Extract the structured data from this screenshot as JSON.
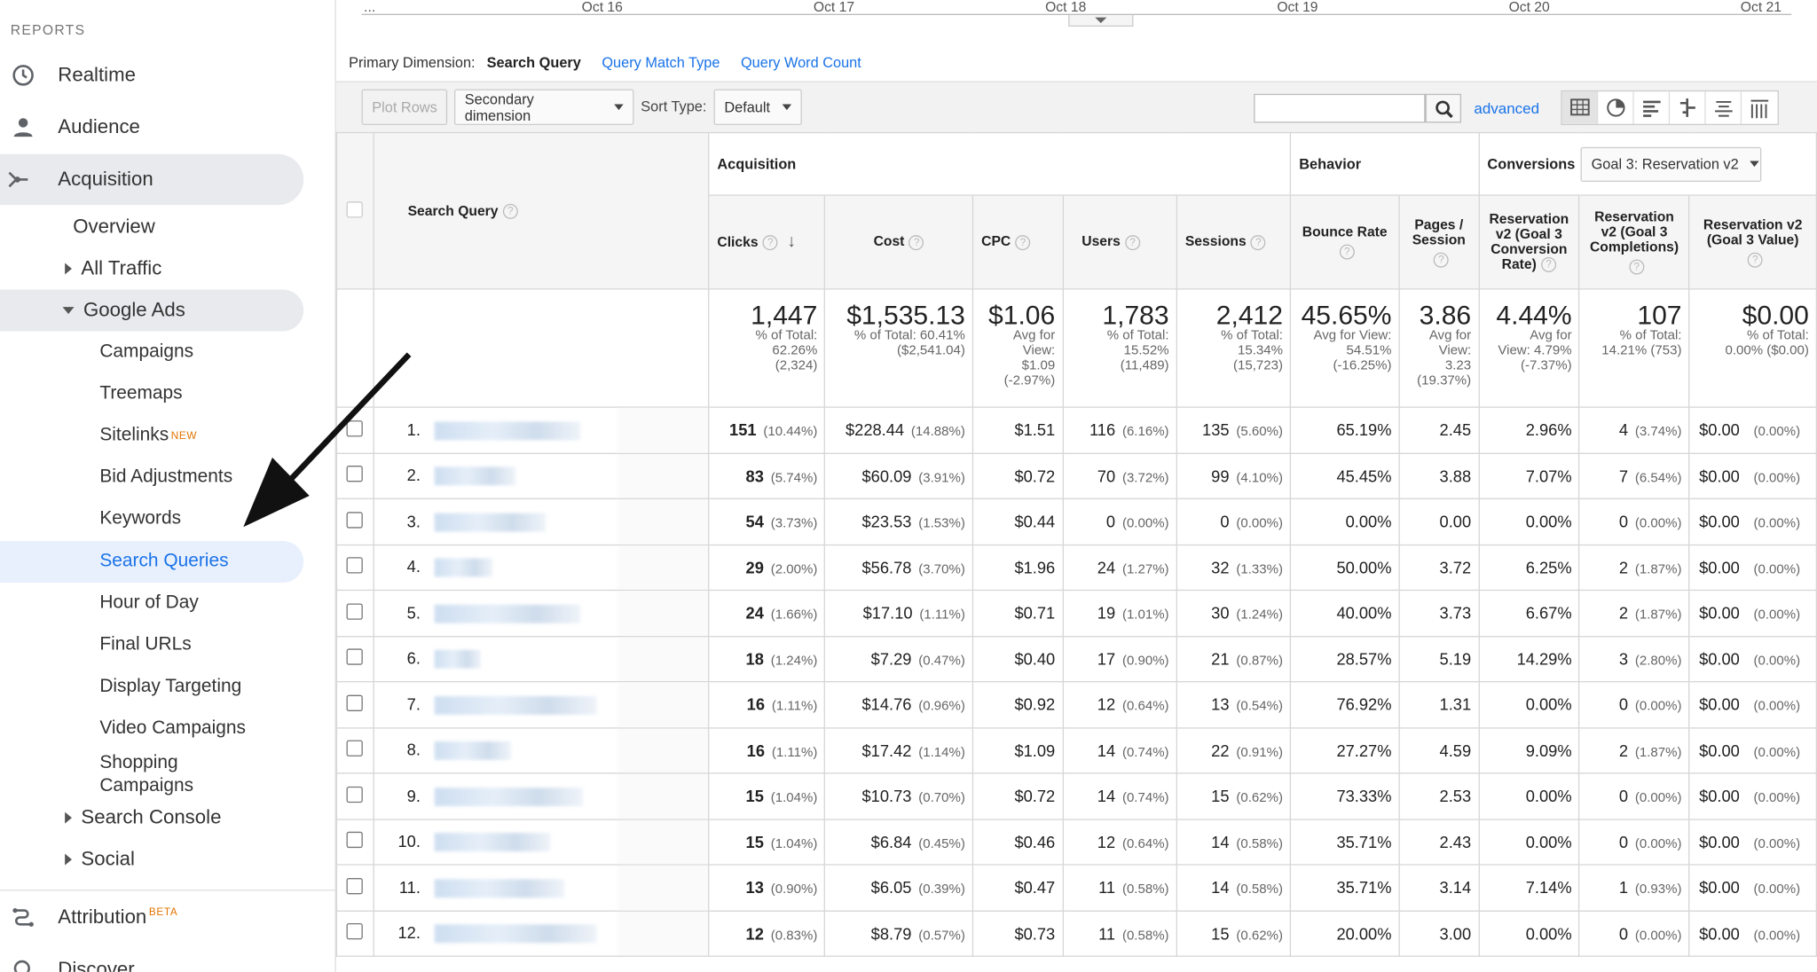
{
  "sidebar": {
    "heading": "REPORTS",
    "top_items": [
      {
        "label": "Realtime",
        "icon": "clock-icon"
      },
      {
        "label": "Audience",
        "icon": "person-icon"
      },
      {
        "label": "Acquisition",
        "icon": "acquisition-icon"
      }
    ],
    "acquisition_children": {
      "overview": "Overview",
      "all_traffic": "All Traffic",
      "google_ads": "Google Ads",
      "google_ads_items": [
        "Campaigns",
        "Treemaps",
        "Sitelinks",
        "Bid Adjustments",
        "Keywords",
        "Search Queries",
        "Hour of Day",
        "Final URLs",
        "Display Targeting",
        "Video Campaigns",
        "Shopping Campaigns"
      ],
      "new_badge": "NEW",
      "search_console": "Search Console",
      "social": "Social"
    },
    "attribution": "Attribution",
    "attribution_badge": "BETA",
    "discover": "Discover"
  },
  "timeline": {
    "labels": [
      "...",
      "Oct 16",
      "Oct 17",
      "Oct 18",
      "Oct 19",
      "Oct 20",
      "Oct 21"
    ]
  },
  "primary_dimension": {
    "label": "Primary Dimension:",
    "current": "Search Query",
    "options": [
      "Query Match Type",
      "Query Word Count"
    ]
  },
  "toolbar": {
    "plot_rows": "Plot Rows",
    "secondary_dimension": "Secondary dimension",
    "sort_type_label": "Sort Type:",
    "sort_type_value": "Default",
    "search_value": "",
    "advanced": "advanced"
  },
  "table": {
    "groups": {
      "acquisition": "Acquisition",
      "behavior": "Behavior",
      "conversions": "Conversions",
      "goal_select": "Goal 3: Reservation v2"
    },
    "columns": {
      "query": "Search Query",
      "clicks": "Clicks",
      "cost": "Cost",
      "cpc": "CPC",
      "users": "Users",
      "sessions": "Sessions",
      "bounce": "Bounce Rate",
      "pages": "Pages / Session",
      "conv_rate": "Reservation v2 (Goal 3 Conversion Rate)",
      "completions": "Reservation v2 (Goal 3 Completions)",
      "value": "Reservation v2 (Goal 3 Value)"
    },
    "totals": {
      "clicks": {
        "big": "1,447",
        "l1": "% of Total:",
        "l2": "62.26%",
        "l3": "(2,324)"
      },
      "cost": {
        "big": "$1,535.13",
        "l1": "% of Total: 60.41%",
        "l2": "($2,541.04)",
        "l3": ""
      },
      "cpc": {
        "big": "$1.06",
        "l1": "Avg for",
        "l2": "View:",
        "l3": "$1.09",
        "l4": "(-2.97%)"
      },
      "users": {
        "big": "1,783",
        "l1": "% of Total:",
        "l2": "15.52%",
        "l3": "(11,489)"
      },
      "sessions": {
        "big": "2,412",
        "l1": "% of Total:",
        "l2": "15.34%",
        "l3": "(15,723)"
      },
      "bounce": {
        "big": "45.65%",
        "l1": "Avg for View:",
        "l2": "54.51%",
        "l3": "(-16.25%)"
      },
      "pages": {
        "big": "3.86",
        "l1": "Avg for",
        "l2": "View:",
        "l3": "3.23",
        "l4": "(19.37%)"
      },
      "conv_rate": {
        "big": "4.44%",
        "l1": "Avg for",
        "l2": "View: 4.79%",
        "l3": "(-7.37%)"
      },
      "completions": {
        "big": "107",
        "l1": "% of Total:",
        "l2": "14.21% (753)",
        "l3": ""
      },
      "value": {
        "big": "$0.00",
        "l1": "% of Total:",
        "l2": "0.00% ($0.00)",
        "l3": ""
      }
    },
    "rows": [
      {
        "n": "1.",
        "clicks": "151",
        "clicks_pct": "(10.44%)",
        "cost": "$228.44",
        "cost_pct": "(14.88%)",
        "cpc": "$1.51",
        "users": "116",
        "users_pct": "(6.16%)",
        "sessions": "135",
        "sessions_pct": "(5.60%)",
        "bounce": "65.19%",
        "pages": "2.45",
        "conv": "2.96%",
        "comp": "4",
        "comp_pct": "(3.74%)",
        "value": "$0.00",
        "value_pct": "(0.00%)"
      },
      {
        "n": "2.",
        "clicks": "83",
        "clicks_pct": "(5.74%)",
        "cost": "$60.09",
        "cost_pct": "(3.91%)",
        "cpc": "$0.72",
        "users": "70",
        "users_pct": "(3.72%)",
        "sessions": "99",
        "sessions_pct": "(4.10%)",
        "bounce": "45.45%",
        "pages": "3.88",
        "conv": "7.07%",
        "comp": "7",
        "comp_pct": "(6.54%)",
        "value": "$0.00",
        "value_pct": "(0.00%)"
      },
      {
        "n": "3.",
        "clicks": "54",
        "clicks_pct": "(3.73%)",
        "cost": "$23.53",
        "cost_pct": "(1.53%)",
        "cpc": "$0.44",
        "users": "0",
        "users_pct": "(0.00%)",
        "sessions": "0",
        "sessions_pct": "(0.00%)",
        "bounce": "0.00%",
        "pages": "0.00",
        "conv": "0.00%",
        "comp": "0",
        "comp_pct": "(0.00%)",
        "value": "$0.00",
        "value_pct": "(0.00%)"
      },
      {
        "n": "4.",
        "clicks": "29",
        "clicks_pct": "(2.00%)",
        "cost": "$56.78",
        "cost_pct": "(3.70%)",
        "cpc": "$1.96",
        "users": "24",
        "users_pct": "(1.27%)",
        "sessions": "32",
        "sessions_pct": "(1.33%)",
        "bounce": "50.00%",
        "pages": "3.72",
        "conv": "6.25%",
        "comp": "2",
        "comp_pct": "(1.87%)",
        "value": "$0.00",
        "value_pct": "(0.00%)"
      },
      {
        "n": "5.",
        "clicks": "24",
        "clicks_pct": "(1.66%)",
        "cost": "$17.10",
        "cost_pct": "(1.11%)",
        "cpc": "$0.71",
        "users": "19",
        "users_pct": "(1.01%)",
        "sessions": "30",
        "sessions_pct": "(1.24%)",
        "bounce": "40.00%",
        "pages": "3.73",
        "conv": "6.67%",
        "comp": "2",
        "comp_pct": "(1.87%)",
        "value": "$0.00",
        "value_pct": "(0.00%)"
      },
      {
        "n": "6.",
        "clicks": "18",
        "clicks_pct": "(1.24%)",
        "cost": "$7.29",
        "cost_pct": "(0.47%)",
        "cpc": "$0.40",
        "users": "17",
        "users_pct": "(0.90%)",
        "sessions": "21",
        "sessions_pct": "(0.87%)",
        "bounce": "28.57%",
        "pages": "5.19",
        "conv": "14.29%",
        "comp": "3",
        "comp_pct": "(2.80%)",
        "value": "$0.00",
        "value_pct": "(0.00%)"
      },
      {
        "n": "7.",
        "clicks": "16",
        "clicks_pct": "(1.11%)",
        "cost": "$14.76",
        "cost_pct": "(0.96%)",
        "cpc": "$0.92",
        "users": "12",
        "users_pct": "(0.64%)",
        "sessions": "13",
        "sessions_pct": "(0.54%)",
        "bounce": "76.92%",
        "pages": "1.31",
        "conv": "0.00%",
        "comp": "0",
        "comp_pct": "(0.00%)",
        "value": "$0.00",
        "value_pct": "(0.00%)"
      },
      {
        "n": "8.",
        "clicks": "16",
        "clicks_pct": "(1.11%)",
        "cost": "$17.42",
        "cost_pct": "(1.14%)",
        "cpc": "$1.09",
        "users": "14",
        "users_pct": "(0.74%)",
        "sessions": "22",
        "sessions_pct": "(0.91%)",
        "bounce": "27.27%",
        "pages": "4.59",
        "conv": "9.09%",
        "comp": "2",
        "comp_pct": "(1.87%)",
        "value": "$0.00",
        "value_pct": "(0.00%)"
      },
      {
        "n": "9.",
        "clicks": "15",
        "clicks_pct": "(1.04%)",
        "cost": "$10.73",
        "cost_pct": "(0.70%)",
        "cpc": "$0.72",
        "users": "14",
        "users_pct": "(0.74%)",
        "sessions": "15",
        "sessions_pct": "(0.62%)",
        "bounce": "73.33%",
        "pages": "2.53",
        "conv": "0.00%",
        "comp": "0",
        "comp_pct": "(0.00%)",
        "value": "$0.00",
        "value_pct": "(0.00%)"
      },
      {
        "n": "10.",
        "clicks": "15",
        "clicks_pct": "(1.04%)",
        "cost": "$6.84",
        "cost_pct": "(0.45%)",
        "cpc": "$0.46",
        "users": "12",
        "users_pct": "(0.64%)",
        "sessions": "14",
        "sessions_pct": "(0.58%)",
        "bounce": "35.71%",
        "pages": "2.43",
        "conv": "0.00%",
        "comp": "0",
        "comp_pct": "(0.00%)",
        "value": "$0.00",
        "value_pct": "(0.00%)"
      },
      {
        "n": "11.",
        "clicks": "13",
        "clicks_pct": "(0.90%)",
        "cost": "$6.05",
        "cost_pct": "(0.39%)",
        "cpc": "$0.47",
        "users": "11",
        "users_pct": "(0.58%)",
        "sessions": "14",
        "sessions_pct": "(0.58%)",
        "bounce": "35.71%",
        "pages": "3.14",
        "conv": "7.14%",
        "comp": "1",
        "comp_pct": "(0.93%)",
        "value": "$0.00",
        "value_pct": "(0.00%)"
      },
      {
        "n": "12.",
        "clicks": "12",
        "clicks_pct": "(0.83%)",
        "cost": "$8.79",
        "cost_pct": "(0.57%)",
        "cpc": "$0.73",
        "users": "11",
        "users_pct": "(0.58%)",
        "sessions": "15",
        "sessions_pct": "(0.62%)",
        "bounce": "20.00%",
        "pages": "3.00",
        "conv": "0.00%",
        "comp": "0",
        "comp_pct": "(0.00%)",
        "value": "$0.00",
        "value_pct": "(0.00%)"
      }
    ]
  },
  "colors": {
    "accent": "#1a73e8",
    "active_bg": "#e8f0fe",
    "badge": "#e37400"
  }
}
